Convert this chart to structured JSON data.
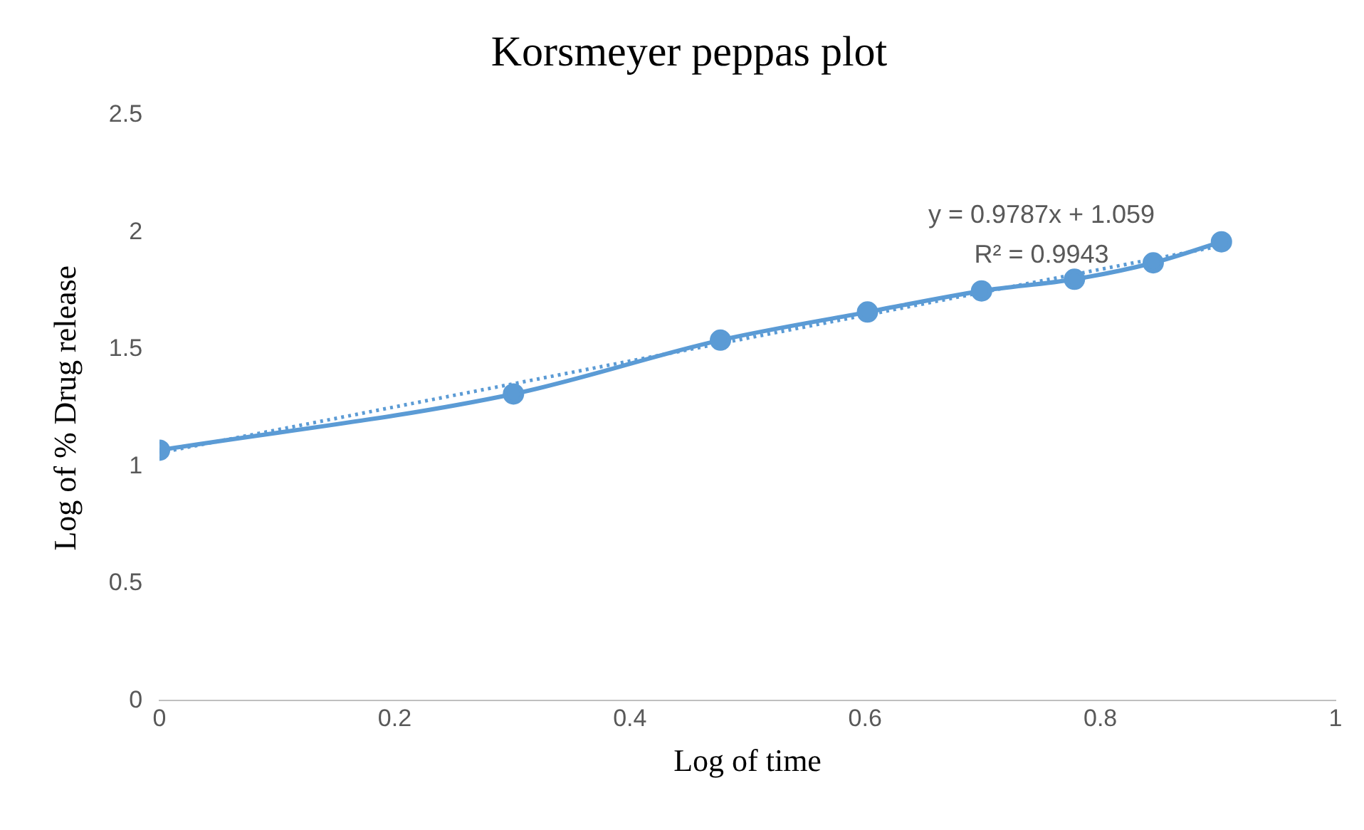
{
  "chart_data": {
    "type": "line",
    "title": "Korsmeyer peppas plot",
    "xlabel": "Log of time",
    "ylabel": "Log of % Drug release",
    "xlim": [
      0,
      1
    ],
    "xticks": [
      0,
      0.2,
      0.4,
      0.6,
      0.8,
      1
    ],
    "ylim": [
      0,
      2.5
    ],
    "yticks": [
      0,
      0.5,
      1,
      1.5,
      2,
      2.5
    ],
    "grid": false,
    "legend": false,
    "annotations": [
      "y = 0.9787x + 1.059",
      "R² = 0.9943"
    ],
    "series": [
      {
        "color": "#5b9bd5",
        "x": [
          0,
          0.301,
          0.477,
          0.602,
          0.699,
          0.778,
          0.845,
          0.903
        ],
        "values": [
          1.07,
          1.31,
          1.54,
          1.66,
          1.75,
          1.8,
          1.87,
          1.96
        ],
        "marker": "circle",
        "line_style": "solid"
      },
      {
        "type": "line",
        "color": "#5b9bd5",
        "x": [
          0,
          0.903
        ],
        "values": [
          1.059,
          1.943
        ],
        "marker": "none",
        "line_style": "dotted"
      }
    ]
  }
}
